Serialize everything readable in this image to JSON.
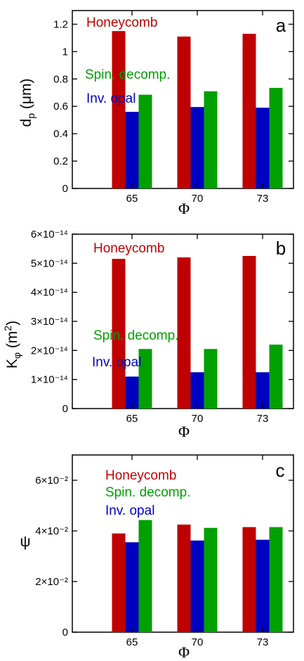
{
  "colors": {
    "honeycomb": "#c00000",
    "spin": "#00a000",
    "opal": "#0000c0"
  },
  "chart_data": [
    {
      "type": "bar",
      "panel_label": "a",
      "xlabel": "Φ",
      "ylabel": "d_p (μm)",
      "categories": [
        "65",
        "70",
        "73"
      ],
      "ylim": [
        0,
        1.3
      ],
      "yticks": [
        "0",
        "0.2",
        "0.4",
        "0.6",
        "0.8",
        "1",
        "1.2"
      ],
      "ytick_values": [
        0,
        0.2,
        0.4,
        0.6,
        0.8,
        1.0,
        1.2
      ],
      "series": [
        {
          "name": "Honeycomb",
          "values": [
            1.15,
            1.11,
            1.13
          ]
        },
        {
          "name": "Inv. opal",
          "values": [
            0.56,
            0.595,
            0.59
          ]
        },
        {
          "name": "Spin. decomp.",
          "values": [
            0.685,
            0.71,
            0.735
          ]
        }
      ]
    },
    {
      "type": "bar",
      "panel_label": "b",
      "xlabel": "Φ",
      "ylabel": "K_φ (m²)",
      "categories": [
        "65",
        "70",
        "73"
      ],
      "ylim": [
        0,
        6e-14
      ],
      "yticks": [
        "0",
        "1×10⁻¹⁴",
        "2×10⁻¹⁴",
        "3×10⁻¹⁴",
        "4×10⁻¹⁴",
        "5×10⁻¹⁴",
        "6×10⁻¹⁴"
      ],
      "ytick_values": [
        0,
        1e-14,
        2e-14,
        3e-14,
        4e-14,
        5e-14,
        6e-14
      ],
      "series": [
        {
          "name": "Honeycomb",
          "values": [
            5.15e-14,
            5.2e-14,
            5.25e-14
          ]
        },
        {
          "name": "Inv. opal",
          "values": [
            1.1e-14,
            1.25e-14,
            1.25e-14
          ]
        },
        {
          "name": "Spin. decomp.",
          "values": [
            2.05e-14,
            2.05e-14,
            2.2e-14
          ]
        }
      ]
    },
    {
      "type": "bar",
      "panel_label": "c",
      "xlabel": "Φ",
      "ylabel": "ψ",
      "categories": [
        "65",
        "70",
        "73"
      ],
      "ylim": [
        0,
        0.07
      ],
      "yticks": [
        "0",
        "2×10⁻²",
        "4×10⁻²",
        "6×10⁻²"
      ],
      "ytick_values": [
        0,
        0.02,
        0.04,
        0.06
      ],
      "series": [
        {
          "name": "Honeycomb",
          "values": [
            0.039,
            0.0425,
            0.0415
          ]
        },
        {
          "name": "Inv. opal",
          "values": [
            0.0355,
            0.0362,
            0.0365
          ]
        },
        {
          "name": "Spin. decomp.",
          "values": [
            0.0443,
            0.0412,
            0.0415
          ]
        }
      ]
    }
  ]
}
